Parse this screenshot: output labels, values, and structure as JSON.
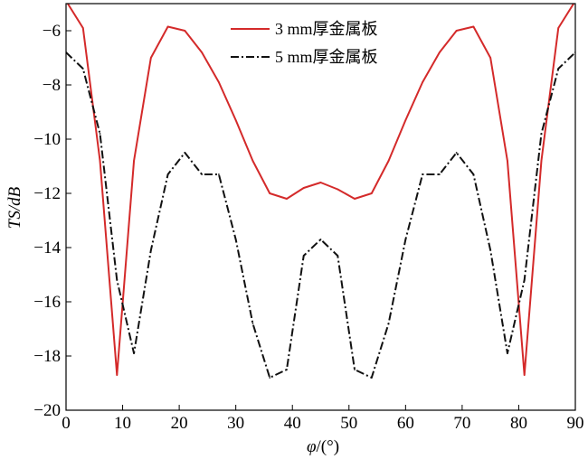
{
  "chart_data": {
    "type": "line",
    "xlabel_symbol": "φ",
    "xlabel_unit": "/(°)",
    "ylabel": "TS/dB",
    "xlim": [
      0,
      90
    ],
    "ylim": [
      -20,
      -5
    ],
    "xticks": [
      0,
      10,
      20,
      30,
      40,
      50,
      60,
      70,
      80,
      90
    ],
    "yticks": [
      -20,
      -18,
      -16,
      -14,
      -12,
      -10,
      -8,
      -6
    ],
    "grid": false,
    "legend_position": "top-center",
    "series": [
      {
        "name": "3 mm厚金属板",
        "color": "#d42a2a",
        "dash": "solid",
        "x": [
          0,
          3,
          6,
          9,
          12,
          15,
          18,
          21,
          24,
          27,
          30,
          33,
          36,
          39,
          42,
          45,
          48,
          51,
          54,
          57,
          60,
          63,
          66,
          69,
          72,
          75,
          78,
          81,
          84,
          87,
          90
        ],
        "y": [
          -4.9,
          -5.9,
          -10.8,
          -18.7,
          -10.8,
          -7.0,
          -5.85,
          -6.0,
          -6.8,
          -7.9,
          -9.3,
          -10.8,
          -12.0,
          -12.2,
          -11.8,
          -11.6,
          -11.85,
          -12.2,
          -12.0,
          -10.8,
          -9.3,
          -7.9,
          -6.8,
          -6.0,
          -5.85,
          -7.0,
          -10.8,
          -18.7,
          -10.8,
          -5.9,
          -4.9
        ]
      },
      {
        "name": "5 mm厚金属板",
        "color": "#111111",
        "dash": "dashdot",
        "x": [
          0,
          3,
          6,
          9,
          12,
          15,
          18,
          21,
          24,
          27,
          30,
          33,
          36,
          39,
          42,
          45,
          48,
          51,
          54,
          57,
          60,
          63,
          66,
          69,
          72,
          75,
          78,
          81,
          84,
          87,
          90
        ],
        "y": [
          -6.8,
          -7.4,
          -9.8,
          -15.2,
          -17.9,
          -14.1,
          -11.3,
          -10.5,
          -11.3,
          -11.3,
          -13.7,
          -16.8,
          -18.8,
          -18.5,
          -14.3,
          -13.7,
          -14.3,
          -18.5,
          -18.8,
          -16.8,
          -13.7,
          -11.3,
          -11.3,
          -10.5,
          -11.3,
          -14.1,
          -17.9,
          -15.2,
          -9.8,
          -7.4,
          -6.8
        ]
      }
    ]
  }
}
